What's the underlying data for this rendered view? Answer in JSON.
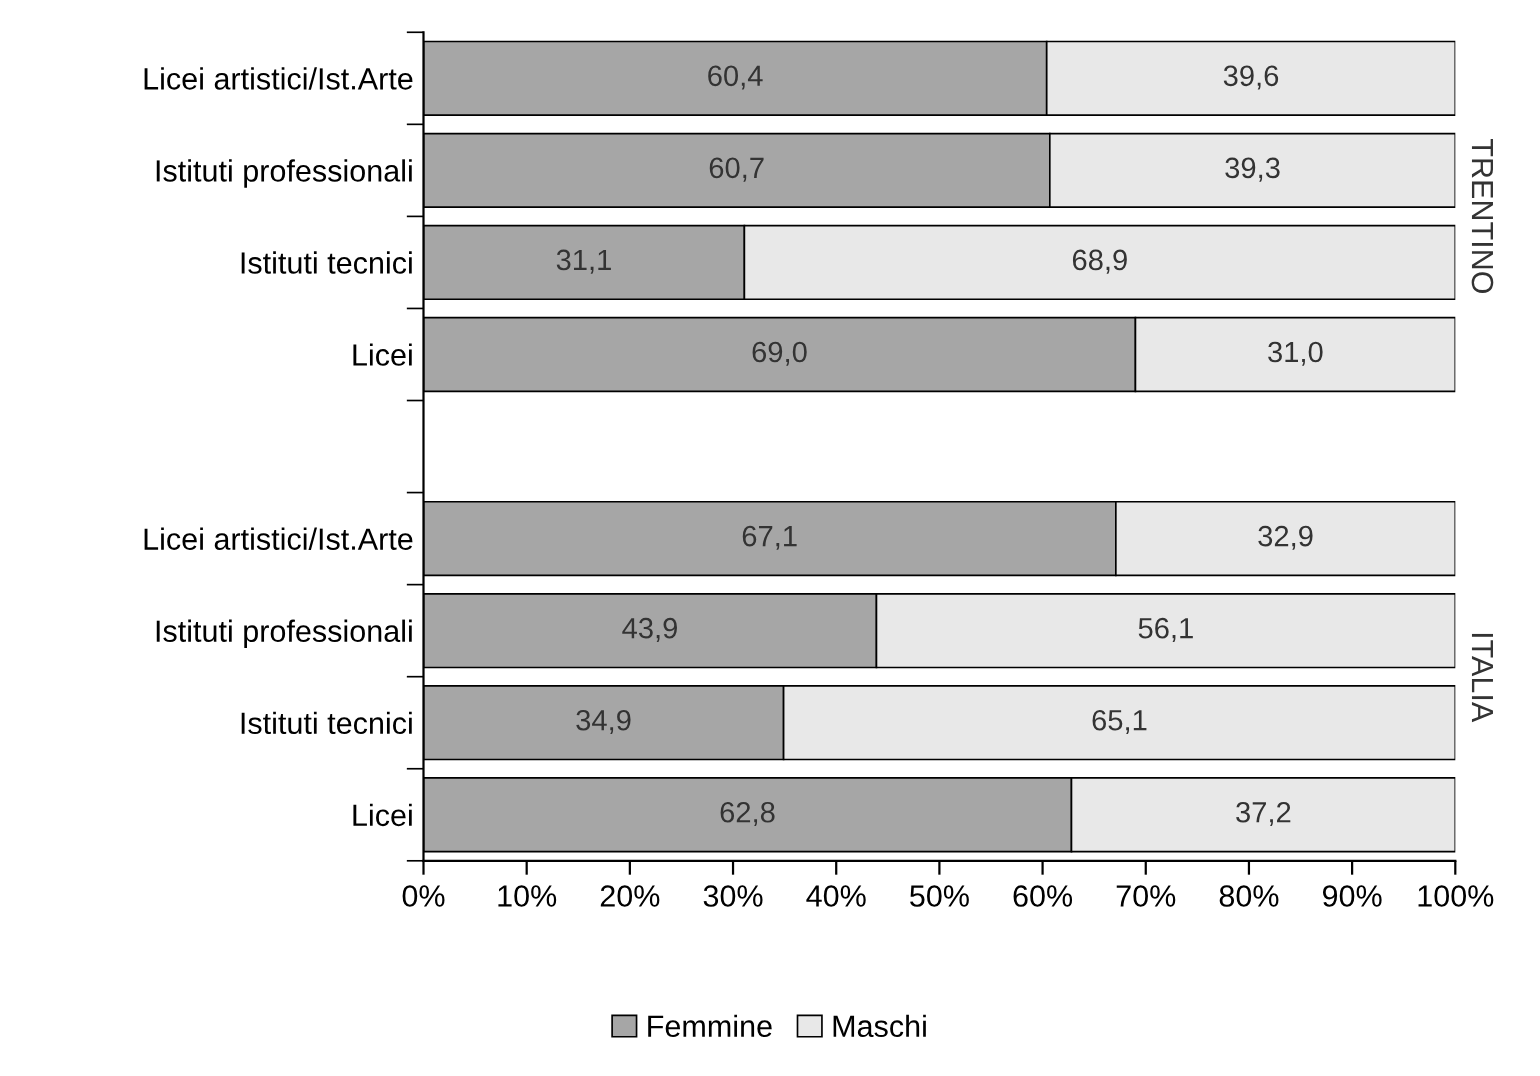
{
  "chart_data": {
    "type": "bar",
    "orientation": "horizontal",
    "stacked": true,
    "categories": [
      "Licei artistici/Ist.Arte",
      "Istituti professionali",
      "Istituti tecnici",
      "Licei",
      null,
      "Licei artistici/Ist.Arte",
      "Istituti professionali",
      "Istituti tecnici",
      "Licei"
    ],
    "series": [
      {
        "name": "Femmine",
        "color": "#a6a6a6",
        "values": [
          60.4,
          60.7,
          31.1,
          69.0,
          null,
          67.1,
          43.9,
          34.9,
          62.8
        ],
        "value_labels": [
          "60,4",
          "60,7",
          "31,1",
          "69,0",
          null,
          "67,1",
          "43,9",
          "34,9",
          "62,8"
        ]
      },
      {
        "name": "Maschi",
        "color": "#e8e8e8",
        "values": [
          39.6,
          39.3,
          68.9,
          31.0,
          null,
          32.9,
          56.1,
          65.1,
          37.2
        ],
        "value_labels": [
          "39,6",
          "39,3",
          "68,9",
          "31,0",
          null,
          "32,9",
          "56,1",
          "65,1",
          "37,2"
        ]
      }
    ],
    "xlim": [
      0,
      100
    ],
    "xticks": [
      {
        "value": 0,
        "label": "0%"
      },
      {
        "value": 10,
        "label": "10%"
      },
      {
        "value": 20,
        "label": "20%"
      },
      {
        "value": 30,
        "label": "30%"
      },
      {
        "value": 40,
        "label": "40%"
      },
      {
        "value": 50,
        "label": "50%"
      },
      {
        "value": 60,
        "label": "60%"
      },
      {
        "value": 70,
        "label": "70%"
      },
      {
        "value": 80,
        "label": "80%"
      },
      {
        "value": 90,
        "label": "90%"
      },
      {
        "value": 100,
        "label": "100%"
      }
    ],
    "annotations": [
      "TRENTINO",
      "ITALIA"
    ],
    "grid": false,
    "legend": "bottom"
  }
}
